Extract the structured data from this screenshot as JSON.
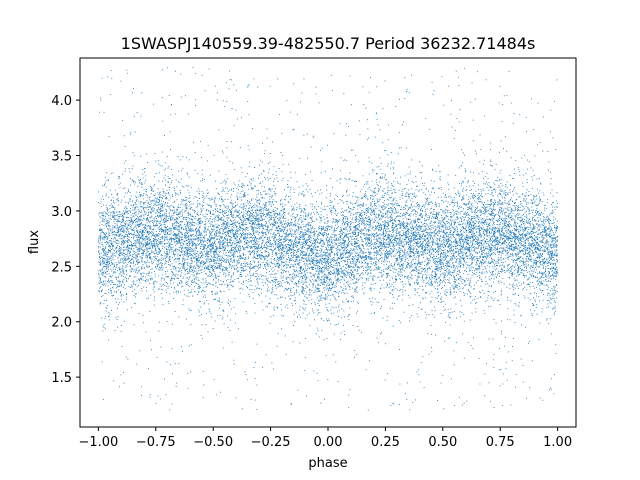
{
  "chart_data": {
    "type": "scatter",
    "title": "1SWASPJ140559.39-482550.7 Period 36232.71484s",
    "xlabel": "phase",
    "ylabel": "flux",
    "xlim": [
      -1.08,
      1.08
    ],
    "ylim": [
      1.05,
      4.38
    ],
    "grid": false,
    "legend": "none",
    "marker_color": "#1f77b4",
    "x_ticks": [
      -1.0,
      -0.75,
      -0.5,
      -0.25,
      0.0,
      0.25,
      0.5,
      0.75,
      1.0
    ],
    "x_tick_labels": [
      "−1.00",
      "−0.75",
      "−0.50",
      "−0.25",
      "0.00",
      "0.25",
      "0.50",
      "0.75",
      "1.00"
    ],
    "y_ticks": [
      1.5,
      2.0,
      2.5,
      3.0,
      3.5,
      4.0
    ],
    "y_tick_labels": [
      "1.5",
      "2.0",
      "2.5",
      "3.0",
      "3.5",
      "4.0"
    ],
    "series": [
      {
        "point_count": 15000,
        "profile": {
          "x": [
            -1.0,
            -0.9,
            -0.8,
            -0.7,
            -0.6,
            -0.5,
            -0.4,
            -0.3,
            -0.2,
            -0.1,
            0.0,
            0.1,
            0.2,
            0.3,
            0.4,
            0.5,
            0.6,
            0.7,
            0.8,
            0.9,
            1.0
          ],
          "mean_flux": [
            2.62,
            2.72,
            2.8,
            2.8,
            2.72,
            2.68,
            2.74,
            2.78,
            2.72,
            2.62,
            2.55,
            2.68,
            2.8,
            2.78,
            2.72,
            2.66,
            2.72,
            2.8,
            2.78,
            2.7,
            2.6
          ],
          "scatter_sigma": 0.25,
          "outlier_range": [
            1.2,
            4.3
          ]
        }
      }
    ]
  }
}
